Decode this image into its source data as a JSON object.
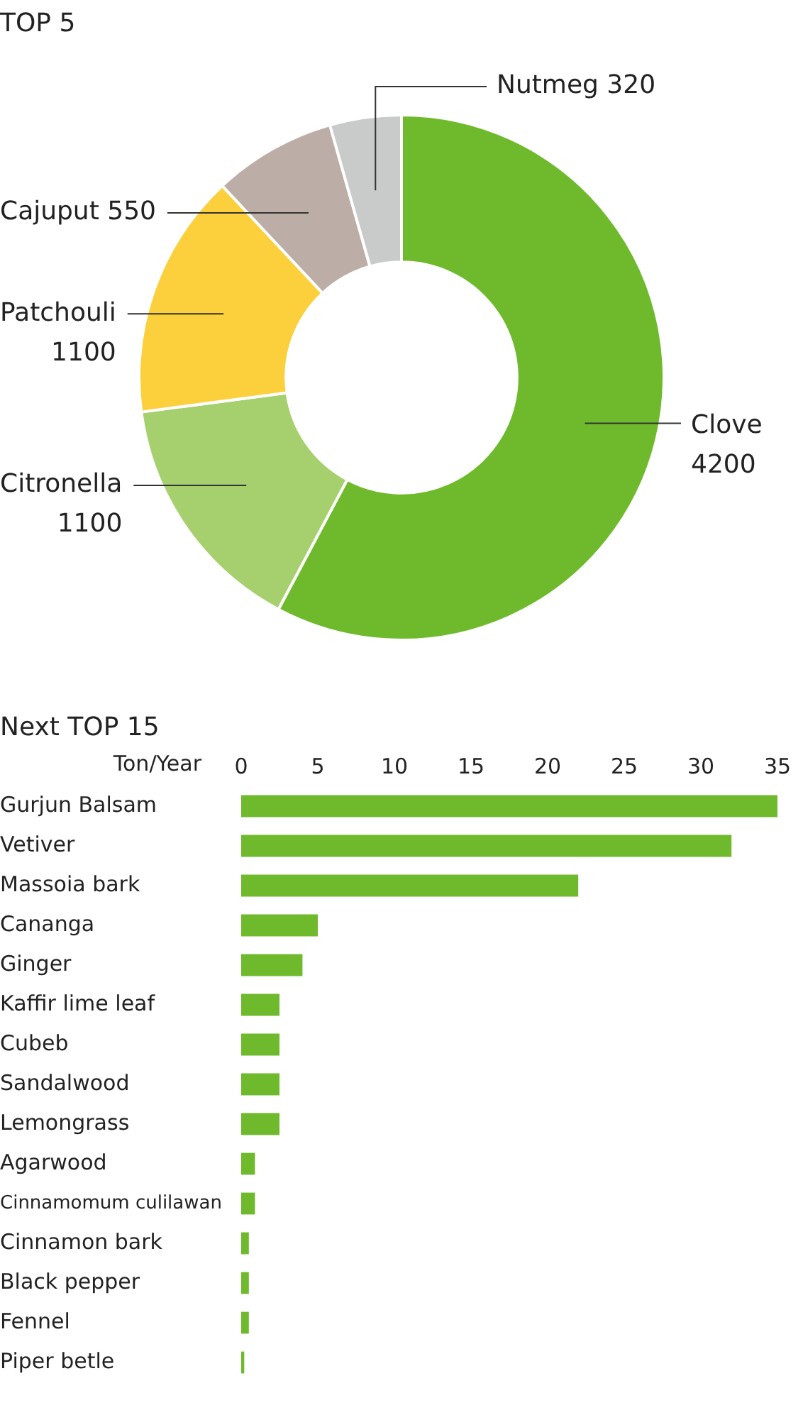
{
  "chart_data": [
    {
      "type": "donut",
      "title": "TOP 5",
      "categories": [
        "Clove",
        "Citronella",
        "Patchouli",
        "Cajuput",
        "Nutmeg"
      ],
      "values": [
        4200,
        1100,
        1100,
        550,
        320
      ],
      "colors": [
        "#6fba2c",
        "#a6cf6e",
        "#fcd03d",
        "#bcaea6",
        "#c9caca"
      ],
      "data_labels": true,
      "legend": false
    },
    {
      "type": "bar",
      "orientation": "horizontal",
      "title": "Next TOP 15",
      "xlabel": "Ton/Year",
      "categories": [
        "Gurjun Balsam",
        "Vetiver",
        "Massoia bark",
        "Cananga",
        "Ginger",
        "Kaffir lime leaf",
        "Cubeb",
        "Sandalwood",
        "Lemongrass",
        "Agarwood",
        "Cinnamomum culilawan",
        "Cinnamon bark",
        "Black pepper",
        "Fennel",
        "Piper betle"
      ],
      "values": [
        35,
        32,
        22,
        5,
        4,
        2.5,
        2.5,
        2.5,
        2.5,
        0.9,
        0.9,
        0.5,
        0.5,
        0.5,
        0.2
      ],
      "color": "#6fba2c",
      "xlim": [
        0,
        35
      ],
      "xticks": [
        0,
        5,
        10,
        15,
        20,
        25,
        30,
        35
      ],
      "grid": false,
      "legend": false
    }
  ]
}
